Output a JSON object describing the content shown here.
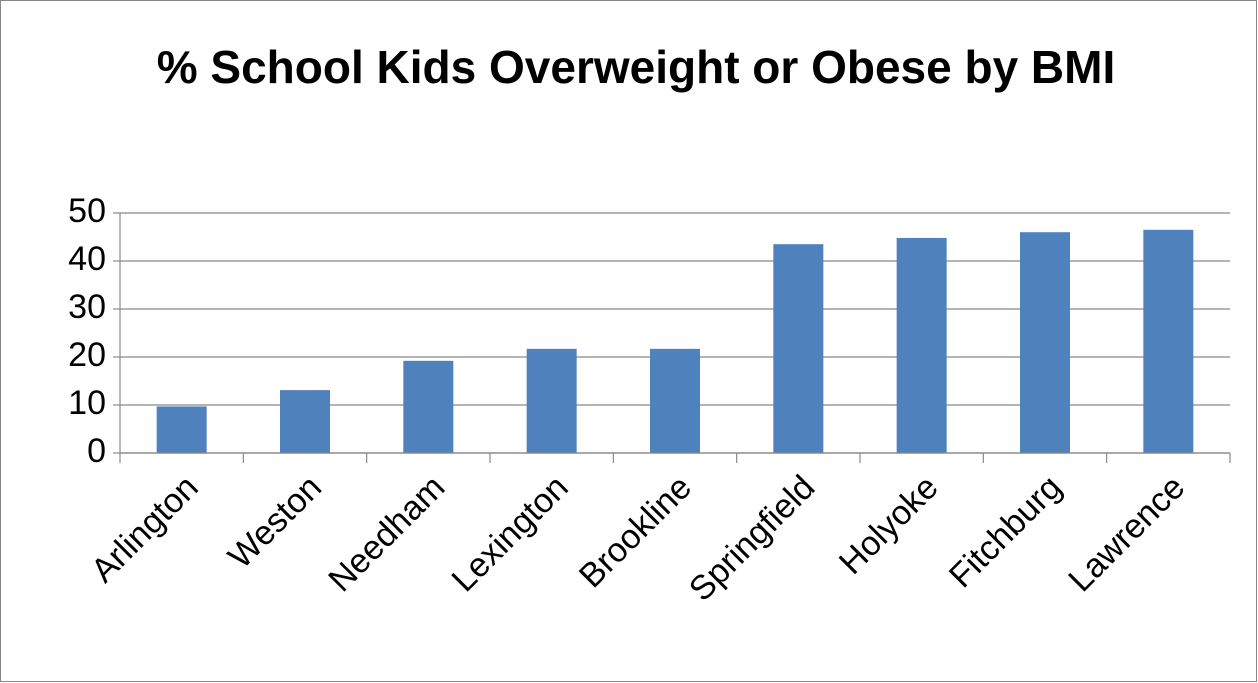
{
  "chart_data": {
    "type": "bar",
    "title": "% School Kids Overweight or Obese by BMI",
    "categories": [
      "Arlington",
      "Weston",
      "Needham",
      "Lexington",
      "Brookline",
      "Springfield",
      "Holyoke",
      "Fitchburg",
      "Lawrence"
    ],
    "values": [
      9.7,
      13.1,
      19.2,
      21.7,
      21.7,
      43.5,
      44.8,
      46.0,
      46.5
    ],
    "color": "#4f81bd",
    "ylim": [
      0,
      50
    ],
    "yticks": [
      0,
      10,
      20,
      30,
      40,
      50
    ],
    "grid": true
  }
}
